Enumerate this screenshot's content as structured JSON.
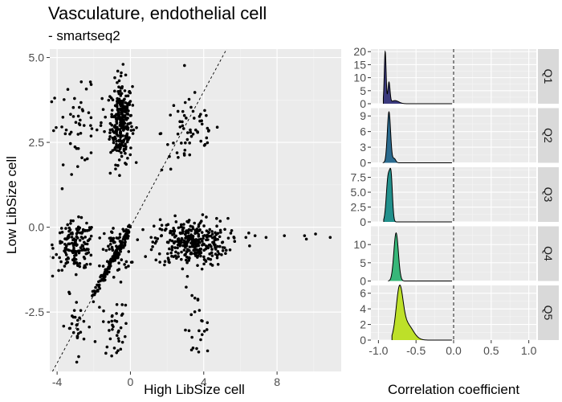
{
  "figure": {
    "title": "Vasculature, endothelial cell",
    "subtitle": "- smartseq2"
  },
  "chart_data": [
    {
      "type": "scatter",
      "xlabel": "High LibSize cell",
      "ylabel": "Low LibSize cell",
      "xlim": [
        -4.4,
        11.5
      ],
      "ylim": [
        -4.25,
        5.25
      ],
      "x_ticks": [
        -4,
        0,
        4,
        8
      ],
      "x_tick_labels": [
        "-4",
        "0",
        "4",
        "8"
      ],
      "y_ticks": [
        -2.5,
        0.0,
        2.5,
        5.0
      ],
      "y_tick_labels": [
        "-2.5",
        "0.0",
        "2.5",
        "5.0"
      ],
      "grid": true,
      "point_color": "#000000",
      "reference_line": {
        "style": "dashed",
        "slope": 1,
        "intercept": 0
      },
      "clusters": [
        {
          "cx": -0.5,
          "cy": 3.1,
          "sx": 0.3,
          "sy": 0.6,
          "n": 260
        },
        {
          "cx": -2.9,
          "cy": 3.0,
          "sx": 0.8,
          "sy": 0.55,
          "n": 55
        },
        {
          "cx": 3.3,
          "cy": 2.8,
          "sx": 0.8,
          "sy": 0.6,
          "n": 60
        },
        {
          "cx": -3.0,
          "cy": -0.55,
          "sx": 0.55,
          "sy": 0.35,
          "n": 160
        },
        {
          "cx": 3.3,
          "cy": -0.45,
          "sx": 1.0,
          "sy": 0.35,
          "n": 330
        },
        {
          "cx": -0.7,
          "cy": -0.7,
          "sx": 0.35,
          "sy": 0.35,
          "n": 70
        },
        {
          "cx": -0.8,
          "cy": -2.95,
          "sx": 0.35,
          "sy": 0.4,
          "n": 35
        },
        {
          "cx": -3.0,
          "cy": -2.9,
          "sx": 0.5,
          "sy": 0.45,
          "n": 30
        },
        {
          "cx": 3.6,
          "cy": -3.0,
          "sx": 0.35,
          "sy": 0.55,
          "n": 25
        }
      ],
      "diagonal_segment": {
        "x_from": -2.0,
        "x_to": 0.0,
        "n": 130
      },
      "extra_points": [
        {
          "x": 6.3,
          "y": -0.3
        },
        {
          "x": 6.8,
          "y": -0.25
        },
        {
          "x": 7.4,
          "y": -0.3
        },
        {
          "x": 8.4,
          "y": -0.25
        },
        {
          "x": 9.5,
          "y": -0.25
        },
        {
          "x": 9.6,
          "y": -0.35
        },
        {
          "x": 10.1,
          "y": -0.2
        },
        {
          "x": 10.9,
          "y": -0.3
        },
        {
          "x": 6.5,
          "y": -0.55
        },
        {
          "x": -0.4,
          "y": 4.8
        },
        {
          "x": -0.5,
          "y": 4.55
        }
      ]
    },
    {
      "type": "area",
      "xlabel": "Correlation coefficient",
      "xlim": [
        -1.1,
        1.1
      ],
      "x_ticks": [
        -1.0,
        -0.5,
        0.0,
        0.5,
        1.0
      ],
      "x_tick_labels": [
        "-1.0",
        "-0.5",
        "0.0",
        "0.5",
        "1.0"
      ],
      "vline": 0.0,
      "panels": [
        {
          "label": "Q1",
          "color": "#3b3a7e",
          "ylim": [
            0,
            21
          ],
          "y_ticks": [
            0,
            5,
            10,
            15,
            20
          ],
          "y_tick_labels": [
            "0",
            "5",
            "10",
            "15",
            "20"
          ],
          "peaks": [
            {
              "mu": -0.91,
              "sigma": 0.012,
              "h": 20.0
            },
            {
              "mu": -0.86,
              "sigma": 0.014,
              "h": 8.0
            },
            {
              "mu": -0.78,
              "sigma": 0.05,
              "h": 1.2
            }
          ],
          "x_start": -0.935
        },
        {
          "label": "Q2",
          "color": "#2a6a8e",
          "ylim": [
            0,
            10.5
          ],
          "y_ticks": [
            0,
            3,
            6,
            9
          ],
          "y_tick_labels": [
            "0",
            "3",
            "6",
            "9"
          ],
          "peaks": [
            {
              "mu": -0.86,
              "sigma": 0.022,
              "h": 9.8
            },
            {
              "mu": -0.79,
              "sigma": 0.02,
              "h": 0.8
            }
          ],
          "x_start": -0.94
        },
        {
          "label": "Q3",
          "color": "#22908c",
          "ylim": [
            0,
            9.2
          ],
          "y_ticks": [
            0,
            2.5,
            5.0,
            7.5
          ],
          "y_tick_labels": [
            "0",
            "2.5",
            "5.0",
            "7.5"
          ],
          "peaks": [
            {
              "mu": -0.87,
              "sigma": 0.025,
              "h": 7.6
            },
            {
              "mu": -0.83,
              "sigma": 0.018,
              "h": 6.2
            }
          ],
          "x_start": -0.93
        },
        {
          "label": "Q4",
          "color": "#37b779",
          "ylim": [
            0,
            15
          ],
          "y_ticks": [
            0,
            5,
            10
          ],
          "y_tick_labels": [
            "0",
            "5",
            "10"
          ],
          "peaks": [
            {
              "mu": -0.765,
              "sigma": 0.03,
              "h": 13.2
            }
          ],
          "x_start": -0.87
        },
        {
          "label": "Q5",
          "color": "#bde029",
          "ylim": [
            0,
            7
          ],
          "y_ticks": [
            0,
            2,
            4,
            6
          ],
          "y_tick_labels": [
            "0",
            "2",
            "4",
            "6"
          ],
          "peaks": [
            {
              "mu": -0.72,
              "sigma": 0.045,
              "h": 6.1
            },
            {
              "mu": -0.62,
              "sigma": 0.08,
              "h": 2.0
            }
          ],
          "x_start": -0.82
        }
      ]
    }
  ]
}
